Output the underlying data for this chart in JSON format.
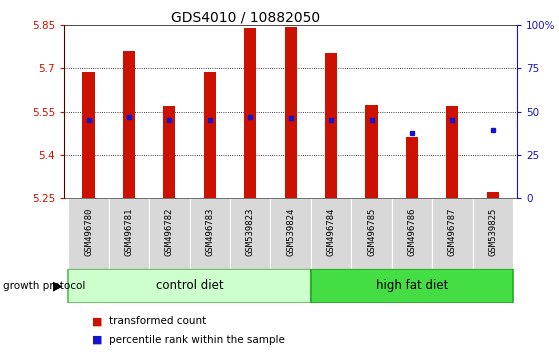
{
  "title": "GDS4010 / 10882050",
  "samples": [
    "GSM496780",
    "GSM496781",
    "GSM496782",
    "GSM496783",
    "GSM539823",
    "GSM539824",
    "GSM496784",
    "GSM496785",
    "GSM496786",
    "GSM496787",
    "GSM539825"
  ],
  "bar_tops": [
    5.688,
    5.758,
    5.568,
    5.688,
    5.838,
    5.843,
    5.752,
    5.572,
    5.462,
    5.568,
    5.272
  ],
  "percentile_values": [
    5.522,
    5.532,
    5.519,
    5.522,
    5.532,
    5.528,
    5.522,
    5.519,
    5.477,
    5.52,
    5.487
  ],
  "bar_base": 5.25,
  "ylim_left": [
    5.25,
    5.85
  ],
  "ylim_right": [
    0,
    100
  ],
  "yticks_left": [
    5.25,
    5.4,
    5.55,
    5.7,
    5.85
  ],
  "yticks_right": [
    0,
    25,
    50,
    75,
    100
  ],
  "ytick_labels_left": [
    "5.25",
    "5.4",
    "5.55",
    "5.7",
    "5.85"
  ],
  "ytick_labels_right": [
    "0",
    "25",
    "50",
    "75",
    "100%"
  ],
  "bar_color": "#CC1100",
  "square_color": "#1414CC",
  "control_label": "control diet",
  "highfat_label": "high fat diet",
  "protocol_label": "growth protocol",
  "legend_bar_label": "transformed count",
  "legend_sq_label": "percentile rank within the sample",
  "control_bg": "#CCFFCC",
  "highfat_bg": "#44DD44",
  "sample_bg": "#D8D8D8",
  "bar_width": 0.3,
  "title_fontsize": 10,
  "tick_fontsize": 7.5,
  "sample_fontsize": 6.5
}
